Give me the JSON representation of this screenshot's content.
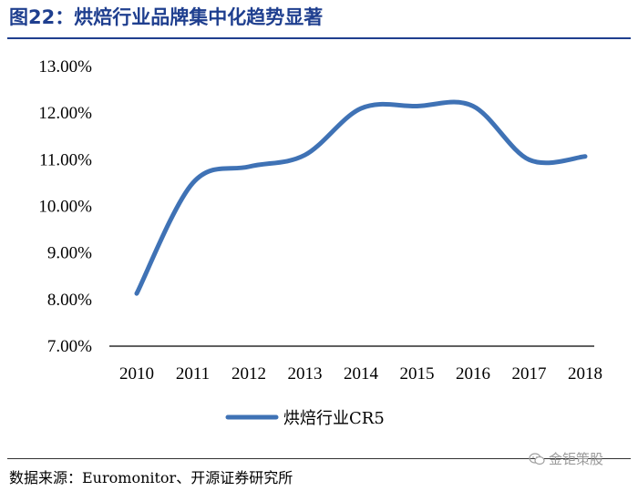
{
  "figure": {
    "title": "图22：烘焙行业品牌集中化趋势显著",
    "source": "数据来源：Euromonitor、开源证券研究所",
    "watermark": "金钜策股"
  },
  "colors": {
    "title": "#1f3f8f",
    "series_line": "#3f72b5",
    "axis": "#000000"
  },
  "chart_data": {
    "type": "line",
    "x": [
      "2010",
      "2011",
      "2012",
      "2013",
      "2014",
      "2015",
      "2016",
      "2017",
      "2018"
    ],
    "series": [
      {
        "name": "烘焙行业CR5",
        "values": [
          8.13,
          10.5,
          10.85,
          11.1,
          12.1,
          12.15,
          12.15,
          11.0,
          11.07
        ]
      }
    ],
    "y_ticks": [
      "13.00%",
      "12.00%",
      "11.00%",
      "10.00%",
      "9.00%",
      "8.00%",
      "7.00%"
    ],
    "ylim": [
      7,
      13
    ],
    "grid": false,
    "legend_position": "bottom"
  }
}
